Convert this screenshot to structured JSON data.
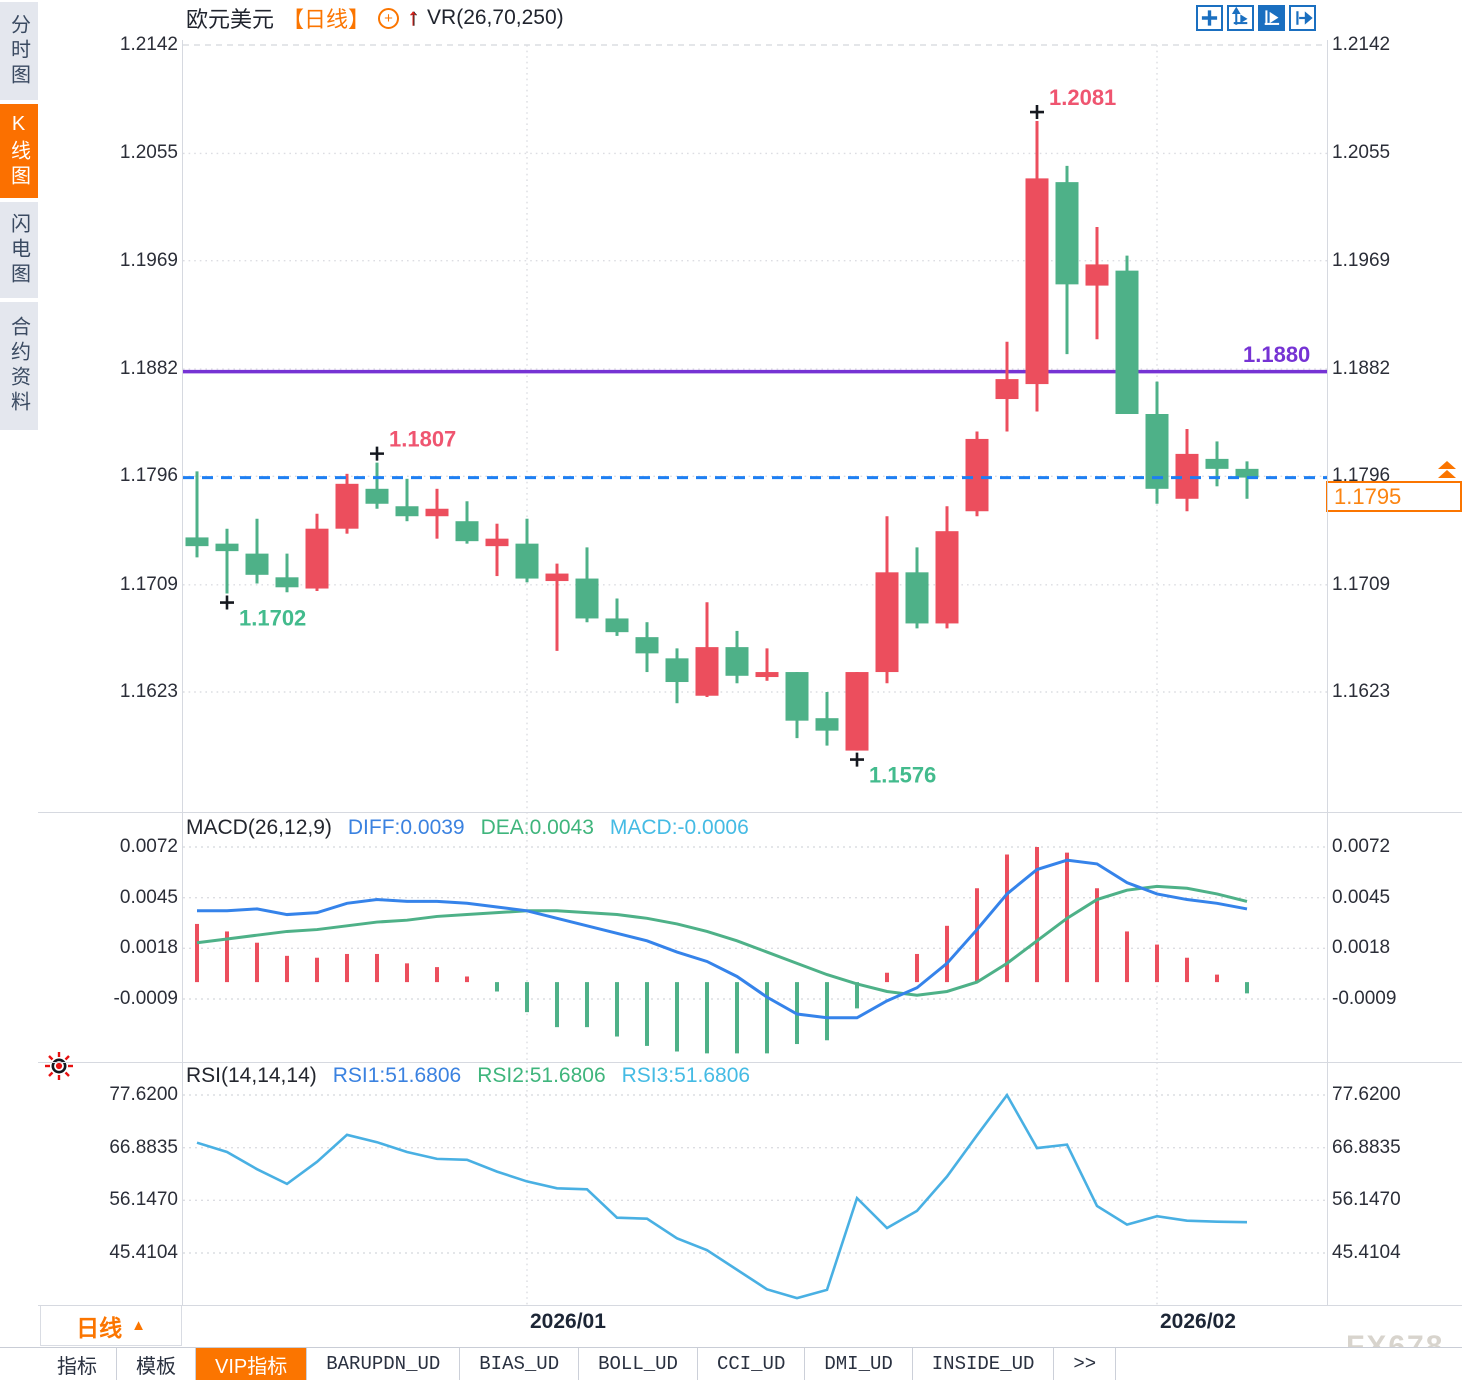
{
  "app": {
    "watermark": "FX678"
  },
  "sidebar": {
    "items": [
      {
        "label": "分时图",
        "active": false
      },
      {
        "label": "K线图",
        "active": true
      },
      {
        "label": "闪电图",
        "active": false
      },
      {
        "label": "合约资料",
        "active": false
      }
    ]
  },
  "header": {
    "symbol": "欧元美元",
    "timeframe": "【日线】",
    "plus_icon": "+",
    "arrow_icon": "↑",
    "indicator": "VR(26,70,250)"
  },
  "toolbar": {
    "icons": [
      "layout-panes-icon",
      "axis-range-icon",
      "auto-scale-icon",
      "goto-latest-icon"
    ],
    "active": "auto-scale-icon"
  },
  "colors": {
    "bull": "#ec4e5d",
    "bear": "#4eb188",
    "diff_line": "#3583ea",
    "dea_line": "#4eb188",
    "rsi_line": "#49b0e3",
    "last_price_line": "#1e7ff2",
    "hline": "#7633d4",
    "accent_orange": "#fb7500",
    "grid": "#dcdde2",
    "axis_text": "#2b2e38",
    "high_label": "#ef5570",
    "low_label": "#43bb8d",
    "toolbar_blue": "#1a6fc0"
  },
  "timeframe_button": {
    "label": "日线",
    "arrow": "▲"
  },
  "x_axis": {
    "labels": [
      {
        "text": "2026/01",
        "index": 11
      },
      {
        "text": "2026/02",
        "index": 32
      }
    ]
  },
  "bottom_tabs": {
    "items": [
      "指标",
      "模板",
      "VIP指标",
      "BARUPDN_UD",
      "BIAS_UD",
      "BOLL_UD",
      "CCI_UD",
      "DMI_UD",
      "INSIDE_UD",
      ">>"
    ],
    "active": "VIP指标"
  },
  "chart_data": [
    {
      "type": "candlestick",
      "title": "欧元美元 日线",
      "y_ticks": [
        "1.2142",
        "1.2055",
        "1.1969",
        "1.1882",
        "1.1796",
        "1.1709",
        "1.1623"
      ],
      "ylim": [
        1.1527,
        1.2178
      ],
      "x_gridline_indices": [
        11,
        32
      ],
      "candles": [
        {
          "o": 1.1747,
          "h": 1.18,
          "l": 1.1731,
          "c": 1.174
        },
        {
          "o": 1.1742,
          "h": 1.1754,
          "l": 1.1702,
          "c": 1.1736
        },
        {
          "o": 1.1734,
          "h": 1.1762,
          "l": 1.171,
          "c": 1.1717
        },
        {
          "o": 1.1715,
          "h": 1.1734,
          "l": 1.1703,
          "c": 1.1707
        },
        {
          "o": 1.1706,
          "h": 1.1766,
          "l": 1.1704,
          "c": 1.1754
        },
        {
          "o": 1.1754,
          "h": 1.1798,
          "l": 1.175,
          "c": 1.179
        },
        {
          "o": 1.1786,
          "h": 1.1807,
          "l": 1.177,
          "c": 1.1774
        },
        {
          "o": 1.1772,
          "h": 1.1794,
          "l": 1.176,
          "c": 1.1764
        },
        {
          "o": 1.1764,
          "h": 1.1786,
          "l": 1.1746,
          "c": 1.177
        },
        {
          "o": 1.176,
          "h": 1.1776,
          "l": 1.1742,
          "c": 1.1744
        },
        {
          "o": 1.174,
          "h": 1.1758,
          "l": 1.1716,
          "c": 1.1746
        },
        {
          "o": 1.1742,
          "h": 1.1762,
          "l": 1.1711,
          "c": 1.1714
        },
        {
          "o": 1.1712,
          "h": 1.1726,
          "l": 1.1656,
          "c": 1.1718
        },
        {
          "o": 1.1714,
          "h": 1.1739,
          "l": 1.1679,
          "c": 1.1682
        },
        {
          "o": 1.1682,
          "h": 1.1698,
          "l": 1.1668,
          "c": 1.1671
        },
        {
          "o": 1.1667,
          "h": 1.1679,
          "l": 1.1639,
          "c": 1.1654
        },
        {
          "o": 1.165,
          "h": 1.1658,
          "l": 1.1614,
          "c": 1.1631
        },
        {
          "o": 1.162,
          "h": 1.1695,
          "l": 1.1619,
          "c": 1.1659
        },
        {
          "o": 1.1659,
          "h": 1.1672,
          "l": 1.163,
          "c": 1.1636
        },
        {
          "o": 1.1635,
          "h": 1.1658,
          "l": 1.1632,
          "c": 1.1639
        },
        {
          "o": 1.1639,
          "h": 1.1639,
          "l": 1.1586,
          "c": 1.16
        },
        {
          "o": 1.1602,
          "h": 1.1623,
          "l": 1.158,
          "c": 1.1592
        },
        {
          "o": 1.1576,
          "h": 1.1639,
          "l": 1.1576,
          "c": 1.1639
        },
        {
          "o": 1.1639,
          "h": 1.1764,
          "l": 1.163,
          "c": 1.1719
        },
        {
          "o": 1.1719,
          "h": 1.1739,
          "l": 1.1674,
          "c": 1.1678
        },
        {
          "o": 1.1678,
          "h": 1.1772,
          "l": 1.1674,
          "c": 1.1752
        },
        {
          "o": 1.1768,
          "h": 1.1832,
          "l": 1.1764,
          "c": 1.1826
        },
        {
          "o": 1.1858,
          "h": 1.1904,
          "l": 1.1832,
          "c": 1.1874
        },
        {
          "o": 1.187,
          "h": 1.2081,
          "l": 1.1848,
          "c": 1.2035
        },
        {
          "o": 1.2032,
          "h": 1.2045,
          "l": 1.1894,
          "c": 1.195
        },
        {
          "o": 1.1949,
          "h": 1.1996,
          "l": 1.1906,
          "c": 1.1966
        },
        {
          "o": 1.1961,
          "h": 1.1973,
          "l": 1.1846,
          "c": 1.1846
        },
        {
          "o": 1.1846,
          "h": 1.1872,
          "l": 1.1774,
          "c": 1.1786
        },
        {
          "o": 1.1778,
          "h": 1.1834,
          "l": 1.1768,
          "c": 1.1814
        },
        {
          "o": 1.181,
          "h": 1.1824,
          "l": 1.1788,
          "c": 1.1802
        },
        {
          "o": 1.1802,
          "h": 1.1808,
          "l": 1.1778,
          "c": 1.1795
        }
      ],
      "markers": [
        {
          "index": 1,
          "pos": "low",
          "label": "1.1702"
        },
        {
          "index": 6,
          "pos": "high",
          "label": "1.1807"
        },
        {
          "index": 22,
          "pos": "low",
          "label": "1.1576"
        },
        {
          "index": 28,
          "pos": "high",
          "label": "1.2081"
        }
      ],
      "hline": {
        "value": 1.188,
        "label": "1.1880"
      },
      "last_price": {
        "value": 1.1795,
        "label": "1.1795"
      }
    },
    {
      "type": "bar",
      "title": "MACD(26,12,9)",
      "legend": [
        {
          "text": "DIFF:0.0039"
        },
        {
          "text": "DEA:0.0043"
        },
        {
          "text": "MACD:-0.0006"
        }
      ],
      "y_ticks": [
        "0.0072",
        "0.0045",
        "0.0018",
        "-0.0009"
      ],
      "ylim": [
        -0.0043,
        0.0091
      ],
      "hist": [
        0.0031,
        0.0027,
        0.0021,
        0.0014,
        0.0013,
        0.0015,
        0.0015,
        0.001,
        0.0008,
        0.0003,
        -0.0005,
        -0.0016,
        -0.0024,
        -0.0024,
        -0.0029,
        -0.0034,
        -0.0037,
        -0.0038,
        -0.0038,
        -0.0038,
        -0.0033,
        -0.0031,
        -0.0014,
        0.0005,
        0.0015,
        0.003,
        0.005,
        0.0068,
        0.0072,
        0.0069,
        0.005,
        0.0027,
        0.002,
        0.0013,
        0.0004,
        -0.0006
      ],
      "series": [
        {
          "name": "DIFF",
          "values": [
            0.0038,
            0.0038,
            0.0039,
            0.0036,
            0.0037,
            0.0042,
            0.0044,
            0.0043,
            0.0043,
            0.0042,
            0.004,
            0.0038,
            0.0034,
            0.003,
            0.0026,
            0.0022,
            0.0016,
            0.0011,
            0.0003,
            -0.0008,
            -0.0017,
            -0.0019,
            -0.0019,
            -0.001,
            -0.0003,
            0.001,
            0.0028,
            0.0047,
            0.006,
            0.0065,
            0.0063,
            0.0053,
            0.0047,
            0.0044,
            0.0042,
            0.0039
          ]
        },
        {
          "name": "DEA",
          "values": [
            0.0021,
            0.0023,
            0.0025,
            0.0027,
            0.0028,
            0.003,
            0.0032,
            0.0033,
            0.0035,
            0.0036,
            0.0037,
            0.0038,
            0.0038,
            0.0037,
            0.0036,
            0.0034,
            0.0031,
            0.0027,
            0.0022,
            0.0016,
            0.001,
            0.0004,
            -0.0001,
            -0.0005,
            -0.0007,
            -0.0005,
            0.0,
            0.001,
            0.0022,
            0.0034,
            0.0044,
            0.0049,
            0.0051,
            0.005,
            0.0047,
            0.0043
          ]
        }
      ]
    },
    {
      "type": "line",
      "title": "RSI(14,14,14)",
      "legend": [
        {
          "text": "RSI1:51.6806"
        },
        {
          "text": "RSI2:51.6806"
        },
        {
          "text": "RSI3:51.6806"
        }
      ],
      "y_ticks": [
        "77.6200",
        "66.8835",
        "56.1470",
        "45.4104"
      ],
      "ylim": [
        34.8,
        84.3
      ],
      "values": [
        67.9,
        66.0,
        62.5,
        59.5,
        64.0,
        69.5,
        68.0,
        66.0,
        64.6,
        64.4,
        62.0,
        60.0,
        58.6,
        58.4,
        52.6,
        52.4,
        48.4,
        46.0,
        42.0,
        38.0,
        36.2,
        37.9,
        56.6,
        50.5,
        54.0,
        61.0,
        69.4,
        77.6,
        66.8,
        67.5,
        55.0,
        51.2,
        52.9,
        52.0,
        51.8,
        51.7
      ]
    }
  ]
}
